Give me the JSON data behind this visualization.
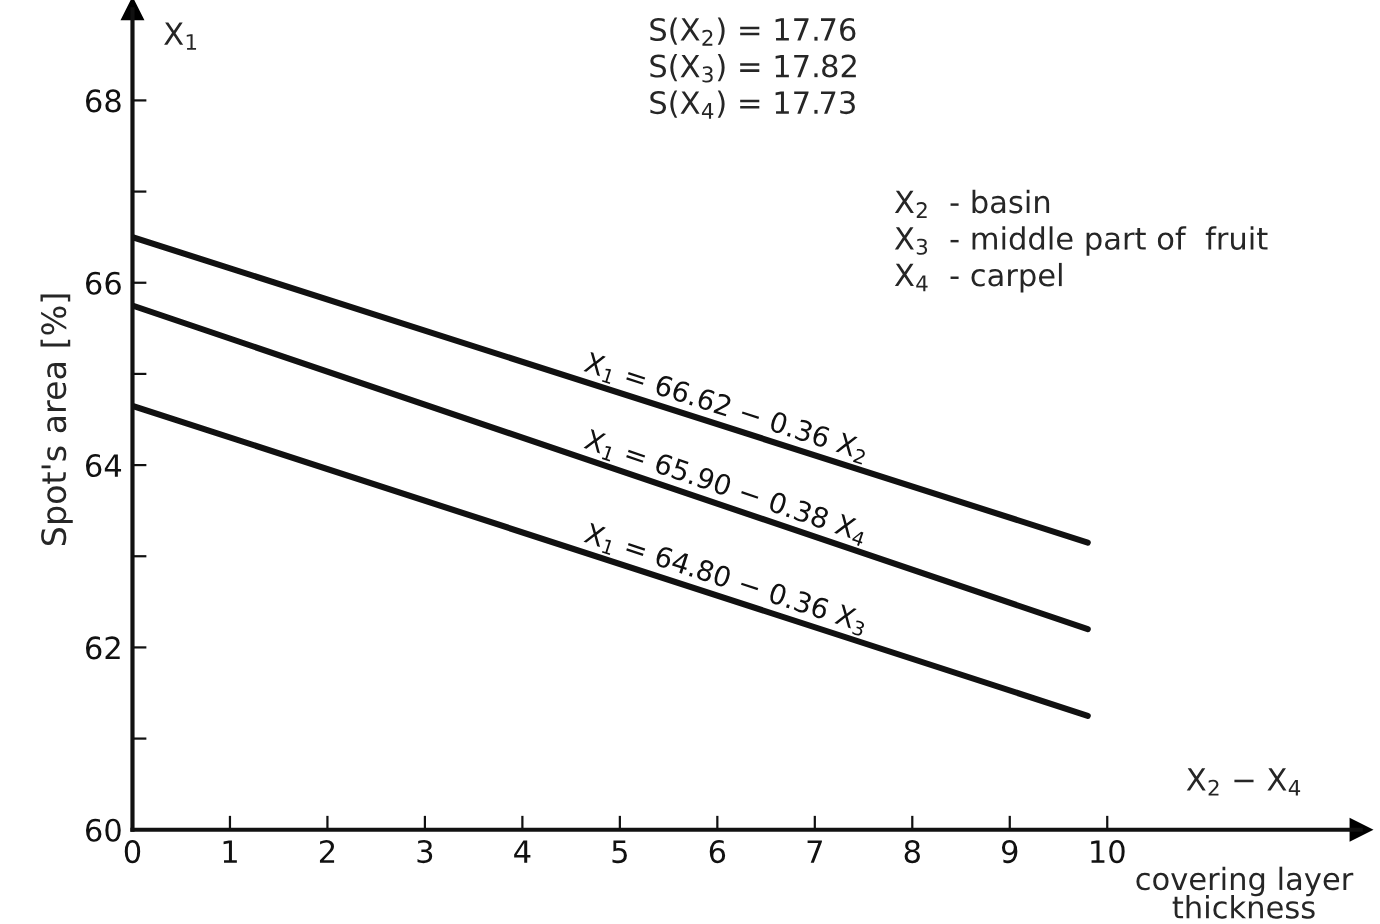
{
  "chart_data": {
    "type": "line",
    "ylabel": "Spot's area [%]",
    "xlabel": "covering layer thickness",
    "x": [
      0,
      9.8
    ],
    "series": [
      {
        "name": "X$_{1}$ = 66.62 − 0.36 X$_{2}$",
        "color": "#111111",
        "values": [
          66.5,
          63.15
        ]
      },
      {
        "name": "X$_{1}$ = 65.90 − 0.38 X$_{4}$",
        "color": "#111111",
        "values": [
          65.75,
          62.2
        ]
      },
      {
        "name": "X$_{1}$ = 64.80 − 0.36 X$_{3}$",
        "color": "#111111",
        "values": [
          64.65,
          61.25
        ]
      }
    ],
    "xlim": [
      0,
      12.6
    ],
    "ylim": [
      60,
      69
    ],
    "xticks": [
      0,
      1,
      2,
      3,
      4,
      5,
      6,
      7,
      8,
      9,
      10
    ],
    "yticks": [
      60,
      {
        "value": 61,
        "label": null
      },
      62,
      {
        "value": 63,
        "label": null
      },
      64,
      {
        "value": 65,
        "label": null
      },
      66,
      {
        "value": 67,
        "label": null
      },
      68
    ],
    "annotations": [
      "X$_{1}$",
      "X$_{2}$ − X$_{4}$",
      "S(X$_{2}$) = 17.76\nS(X$_{3}$) = 17.82\nS(X$_{4}$) = 17.73",
      "X$_{2}$  - basin\nX$_{3}$  - middle part of  fruit\nX$_{4}$  - carpel"
    ],
    "grid": false,
    "legend": false,
    "marker": "none",
    "line_style": "solid"
  }
}
